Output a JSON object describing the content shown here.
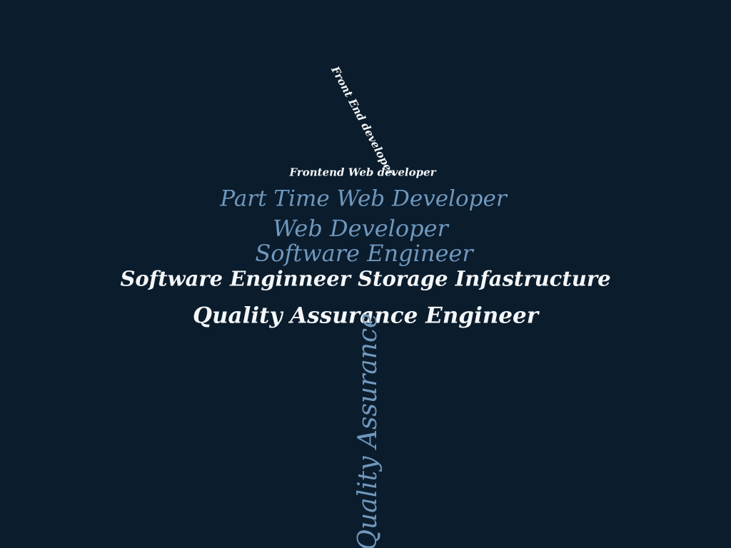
{
  "colors": {
    "background": "#0b1c2c",
    "white": "#f4f6f8",
    "steel_blue": "#6f98be"
  },
  "words": [
    {
      "key": "frontend_end",
      "text": "Front End developer",
      "color": "white"
    },
    {
      "key": "frontend_web",
      "text": "Frontend Web developer",
      "color": "white"
    },
    {
      "key": "part_time",
      "text": "Part Time Web Developer",
      "color": "steel_blue"
    },
    {
      "key": "web_dev",
      "text": "Web Developer",
      "color": "steel_blue"
    },
    {
      "key": "software_eng",
      "text": "Software Engineer",
      "color": "steel_blue"
    },
    {
      "key": "software_storage",
      "text": "Software Enginneer Storage Infastructure",
      "color": "white"
    },
    {
      "key": "qa_engineer",
      "text": "Quality Assurance Engineer",
      "color": "white"
    },
    {
      "key": "qa_vertical",
      "text": "Quality Assurance",
      "color": "steel_blue"
    }
  ]
}
